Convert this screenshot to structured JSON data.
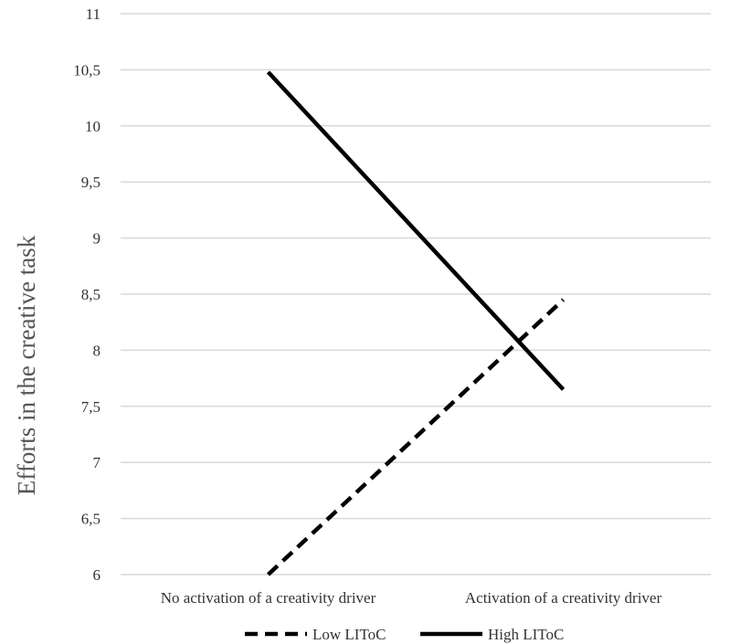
{
  "chart_data": {
    "type": "line",
    "title": "",
    "xlabel": "",
    "ylabel": "Efforts in the creative task",
    "categories": [
      "No activation of a creativity driver",
      "Activation of a creativity driver"
    ],
    "y_ticks": [
      "6",
      "6,5",
      "7",
      "7,5",
      "8",
      "8,5",
      "9",
      "9,5",
      "10",
      "10,5",
      "11"
    ],
    "ylim": [
      6,
      11
    ],
    "grid": true,
    "legend_position": "bottom",
    "series": [
      {
        "name": "Low LIToC",
        "values": [
          6.0,
          8.45
        ],
        "style": "dashed",
        "color": "#000000"
      },
      {
        "name": "High LIToC",
        "values": [
          10.48,
          7.65
        ],
        "style": "solid",
        "color": "#000000"
      }
    ]
  }
}
